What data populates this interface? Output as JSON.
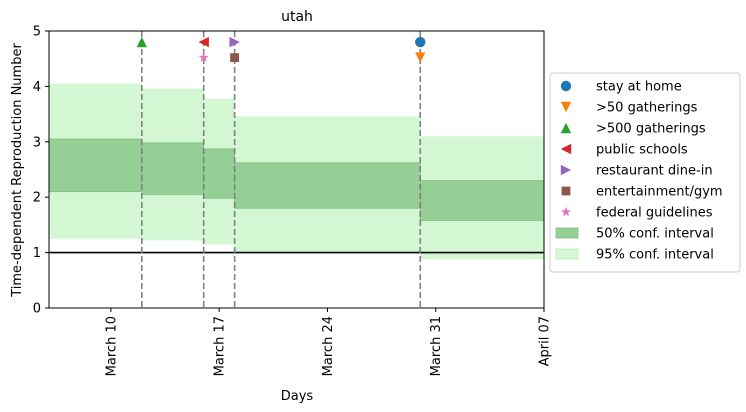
{
  "chart_data": {
    "type": "area",
    "title": "utah",
    "xlabel": "Days",
    "ylabel": "Time-dependent Reproduction Number",
    "x_range": [
      "2020-03-06",
      "2020-04-07"
    ],
    "ylim": [
      0,
      5
    ],
    "x_ticks": [
      {
        "date": "2020-03-10",
        "label": "March 10"
      },
      {
        "date": "2020-03-17",
        "label": "March 17"
      },
      {
        "date": "2020-03-24",
        "label": "March 24"
      },
      {
        "date": "2020-03-31",
        "label": "March 31"
      },
      {
        "date": "2020-04-07",
        "label": "April 07"
      }
    ],
    "y_ticks": [
      0,
      1,
      2,
      3,
      4,
      5
    ],
    "reference_line": {
      "y": 1,
      "color": "#000000"
    },
    "segments": [
      {
        "start": "2020-03-06",
        "end": "2020-03-12",
        "ci50": [
          2.1,
          3.05
        ],
        "ci95": [
          1.25,
          4.05
        ]
      },
      {
        "start": "2020-03-12",
        "end": "2020-03-16",
        "ci50": [
          2.05,
          2.98
        ],
        "ci95": [
          1.22,
          3.96
        ]
      },
      {
        "start": "2020-03-16",
        "end": "2020-03-18",
        "ci50": [
          1.98,
          2.87
        ],
        "ci95": [
          1.15,
          3.78
        ]
      },
      {
        "start": "2020-03-18",
        "end": "2020-03-30",
        "ci50": [
          1.8,
          2.62
        ],
        "ci95": [
          1.0,
          3.46
        ]
      },
      {
        "start": "2020-03-30",
        "end": "2020-04-07",
        "ci50": [
          1.58,
          2.3
        ],
        "ci95": [
          0.88,
          3.1
        ]
      }
    ],
    "interventions": [
      {
        "date": "2020-03-12",
        "y": 4.8,
        "marker": "triangle-up",
        "color": "#2ca02c",
        "name": ">500 gatherings"
      },
      {
        "date": "2020-03-16",
        "y": 4.8,
        "marker": "triangle-left",
        "color": "#d62728",
        "name": "public schools"
      },
      {
        "date": "2020-03-16",
        "y": 4.52,
        "marker": "star",
        "color": "#e377c2",
        "name": "federal guidelines"
      },
      {
        "date": "2020-03-18",
        "y": 4.8,
        "marker": "triangle-right",
        "color": "#9467bd",
        "name": "restaurant dine-in"
      },
      {
        "date": "2020-03-18",
        "y": 4.52,
        "marker": "square",
        "color": "#8c564b",
        "name": "entertainment/gym"
      },
      {
        "date": "2020-03-30",
        "y": 4.8,
        "marker": "circle",
        "color": "#1f77b4",
        "name": "stay at home"
      },
      {
        "date": "2020-03-30",
        "y": 4.52,
        "marker": "triangle-down",
        "color": "#ff7f0e",
        "name": ">50 gatherings"
      }
    ],
    "intervention_lines": [
      "2020-03-12",
      "2020-03-16",
      "2020-03-18",
      "2020-03-30"
    ],
    "legend": {
      "placement": "right",
      "entries": [
        {
          "label": "stay at home",
          "marker": "circle",
          "color": "#1f77b4"
        },
        {
          "label": ">50 gatherings",
          "marker": "triangle-down",
          "color": "#ff7f0e"
        },
        {
          "label": ">500 gatherings",
          "marker": "triangle-up",
          "color": "#2ca02c"
        },
        {
          "label": "public schools",
          "marker": "triangle-left",
          "color": "#d62728"
        },
        {
          "label": "restaurant dine-in",
          "marker": "triangle-right",
          "color": "#9467bd"
        },
        {
          "label": "entertainment/gym",
          "marker": "square",
          "color": "#8c564b"
        },
        {
          "label": "federal guidelines",
          "marker": "star",
          "color": "#e377c2"
        },
        {
          "label": "50% conf. interval",
          "marker": "patch",
          "color": "#95cf95"
        },
        {
          "label": "95% conf. interval",
          "marker": "patch",
          "color": "#d3f7d3"
        }
      ]
    },
    "colors": {
      "ci50": "#95cf95",
      "ci95": "#d3f7d3",
      "vline": "#808080"
    }
  }
}
